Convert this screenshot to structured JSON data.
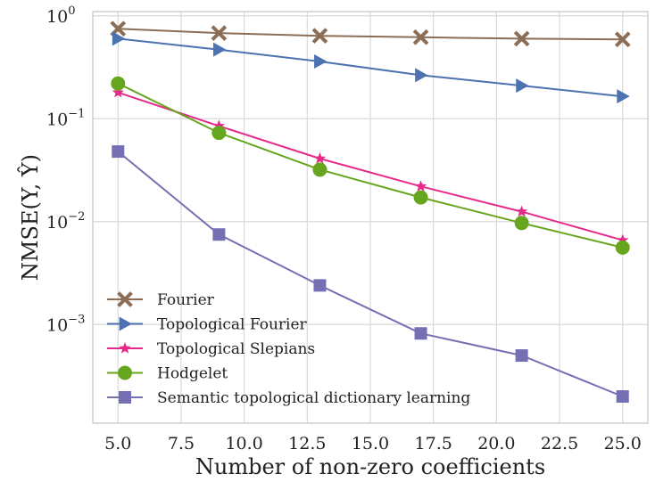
{
  "chart_data": {
    "type": "line",
    "xlabel": "Number of non-zero coefficients",
    "ylabel": "NMSE(Y, Ŷ)",
    "yscale": "log",
    "xlim": [
      4.0,
      26.0
    ],
    "ylim": [
      0.00011,
      1.1
    ],
    "grid": true,
    "legend_position": "lower-left",
    "x_ticks": [
      5.0,
      7.5,
      10.0,
      12.5,
      15.0,
      17.5,
      20.0,
      22.5,
      25.0
    ],
    "x_tick_labels": [
      "5.0",
      "7.5",
      "10.0",
      "12.5",
      "15.0",
      "17.5",
      "20.0",
      "22.5",
      "25.0"
    ],
    "y_ticks": [
      {
        "value": 1,
        "base": "10",
        "exp": "0"
      },
      {
        "value": 0.1,
        "base": "10",
        "exp": "−1"
      },
      {
        "value": 0.01,
        "base": "10",
        "exp": "−2"
      },
      {
        "value": 0.001,
        "base": "10",
        "exp": "−3"
      }
    ],
    "x": [
      5,
      9,
      13,
      17,
      21,
      25
    ],
    "series": [
      {
        "name": "Fourier",
        "color": "#8c6d56",
        "marker": "x",
        "values": [
          0.75,
          0.68,
          0.64,
          0.62,
          0.6,
          0.59
        ]
      },
      {
        "name": "Topological Fourier",
        "color": "#4c72b0",
        "marker": "triangle-right",
        "values": [
          0.6,
          0.47,
          0.36,
          0.265,
          0.21,
          0.165
        ]
      },
      {
        "name": "Topological Slepians",
        "color": "#e7298a",
        "marker": "star",
        "values": [
          0.18,
          0.085,
          0.041,
          0.022,
          0.0125,
          0.0066
        ]
      },
      {
        "name": "Hodgelet",
        "color": "#66a61e",
        "marker": "circle",
        "values": [
          0.22,
          0.073,
          0.032,
          0.0172,
          0.0097,
          0.0056
        ]
      },
      {
        "name": "Semantic topological dictionary learning",
        "color": "#7570b3",
        "marker": "square",
        "values": [
          0.048,
          0.0075,
          0.0024,
          0.00082,
          0.0005,
          0.0002
        ]
      }
    ]
  }
}
